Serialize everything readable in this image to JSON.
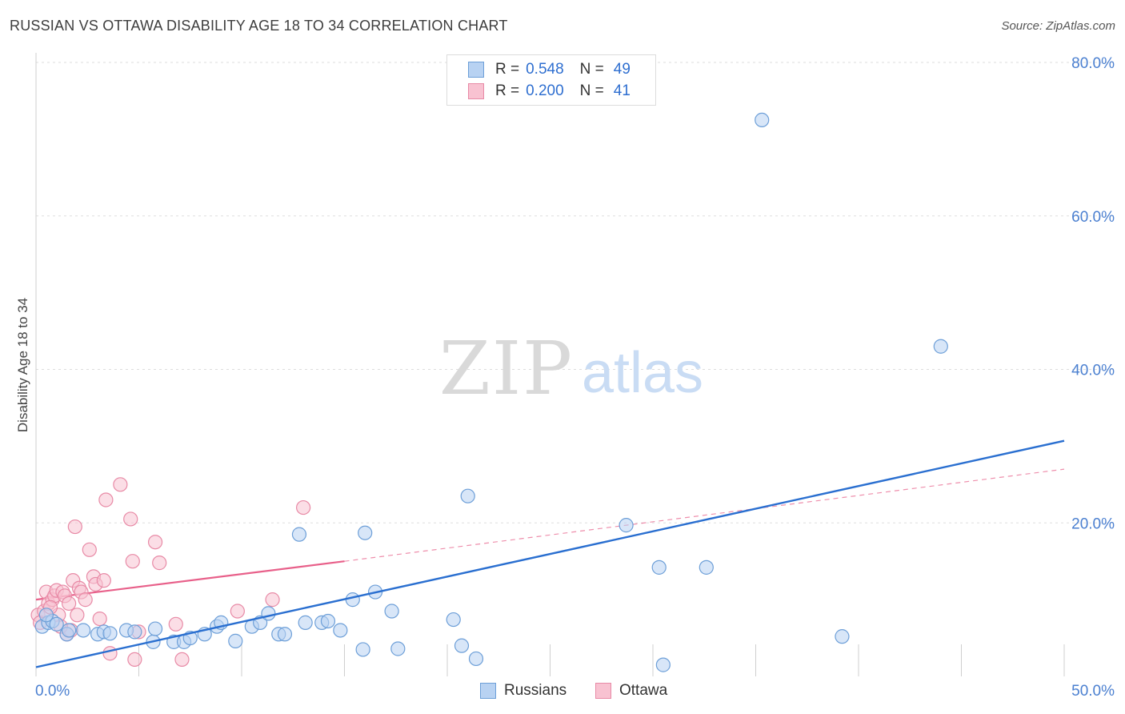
{
  "title": "RUSSIAN VS OTTAWA DISABILITY AGE 18 TO 34 CORRELATION CHART",
  "source": "Source: ZipAtlas.com",
  "watermark": {
    "zip": "ZIP",
    "atlas": "atlas"
  },
  "legend": {
    "rows": [
      {
        "r_label": "R =",
        "r_value": "0.548",
        "n_label": "N =",
        "n_value": "49"
      },
      {
        "r_label": "R =",
        "r_value": "0.200",
        "n_label": "N =",
        "n_value": "41"
      }
    ]
  },
  "bottom_legend": {
    "russians": "Russians",
    "ottawa": "Ottawa"
  },
  "colors": {
    "russians_fill": "#b8d2f2",
    "russians_stroke": "#6d9fd8",
    "russians_line": "#2a6fd0",
    "ottawa_fill": "#f8c2d1",
    "ottawa_stroke": "#e88aa6",
    "ottawa_line": "#e8608a",
    "grid": "#dddddd",
    "axis_text": "#4a7fd0"
  },
  "chart_data": {
    "type": "scatter",
    "title": "RUSSIAN VS OTTAWA DISABILITY AGE 18 TO 34 CORRELATION CHART",
    "xlabel": "",
    "ylabel": "Disability Age 18 to 34",
    "xlim": [
      0,
      50
    ],
    "ylim": [
      0,
      80
    ],
    "x_tick_labels": [
      "0.0%",
      "50.0%"
    ],
    "y_ticks": [
      20,
      40,
      60,
      80
    ],
    "y_tick_labels": [
      "20.0%",
      "40.0%",
      "60.0%",
      "80.0%"
    ],
    "series": [
      {
        "name": "Russians",
        "r": 0.548,
        "n": 49,
        "trend": {
          "x": [
            0,
            50
          ],
          "y": [
            1.2,
            30.7
          ],
          "style": "solid"
        },
        "points": [
          [
            0.3,
            6.5
          ],
          [
            0.6,
            7.0
          ],
          [
            0.8,
            7.2
          ],
          [
            1.0,
            6.8
          ],
          [
            1.5,
            5.5
          ],
          [
            1.6,
            6.0
          ],
          [
            2.3,
            6.0
          ],
          [
            3.0,
            5.5
          ],
          [
            3.3,
            5.8
          ],
          [
            3.6,
            5.6
          ],
          [
            4.4,
            6.0
          ],
          [
            4.8,
            5.8
          ],
          [
            5.7,
            4.5
          ],
          [
            5.8,
            6.2
          ],
          [
            6.7,
            4.5
          ],
          [
            7.2,
            4.5
          ],
          [
            7.5,
            5.0
          ],
          [
            8.2,
            5.5
          ],
          [
            8.8,
            6.5
          ],
          [
            9.0,
            7.0
          ],
          [
            9.7,
            4.6
          ],
          [
            10.5,
            6.5
          ],
          [
            10.9,
            7.0
          ],
          [
            11.3,
            8.2
          ],
          [
            11.8,
            5.5
          ],
          [
            12.1,
            5.5
          ],
          [
            12.8,
            18.5
          ],
          [
            13.1,
            7.0
          ],
          [
            13.9,
            7.0
          ],
          [
            14.2,
            7.2
          ],
          [
            14.8,
            6.0
          ],
          [
            15.4,
            10.0
          ],
          [
            15.9,
            3.5
          ],
          [
            16.0,
            18.7
          ],
          [
            16.5,
            11.0
          ],
          [
            17.3,
            8.5
          ],
          [
            17.6,
            3.6
          ],
          [
            20.3,
            7.4
          ],
          [
            20.7,
            4.0
          ],
          [
            21.0,
            23.5
          ],
          [
            21.4,
            2.3
          ],
          [
            28.7,
            19.7
          ],
          [
            30.3,
            14.2
          ],
          [
            30.5,
            1.5
          ],
          [
            32.6,
            14.2
          ],
          [
            35.3,
            72.5
          ],
          [
            39.2,
            5.2
          ],
          [
            44.0,
            43.0
          ],
          [
            0.5,
            8.0
          ]
        ]
      },
      {
        "name": "Ottawa",
        "r": 0.2,
        "n": 41,
        "trend_solid": {
          "x": [
            0,
            15
          ],
          "y": [
            10.0,
            15.0
          ]
        },
        "trend_dashed": {
          "x": [
            15,
            50
          ],
          "y": [
            15.0,
            27.0
          ]
        },
        "points": [
          [
            0.1,
            8.0
          ],
          [
            0.2,
            7.0
          ],
          [
            0.4,
            8.5
          ],
          [
            0.5,
            11.0
          ],
          [
            0.6,
            9.5
          ],
          [
            0.8,
            10.0
          ],
          [
            0.9,
            10.5
          ],
          [
            1.0,
            11.2
          ],
          [
            1.1,
            8.0
          ],
          [
            1.3,
            11.0
          ],
          [
            1.4,
            10.5
          ],
          [
            1.5,
            5.5
          ],
          [
            1.6,
            9.5
          ],
          [
            1.7,
            6.0
          ],
          [
            1.8,
            12.5
          ],
          [
            1.9,
            19.5
          ],
          [
            2.0,
            8.0
          ],
          [
            2.1,
            11.5
          ],
          [
            2.2,
            11.0
          ],
          [
            2.4,
            10.0
          ],
          [
            2.6,
            16.5
          ],
          [
            2.8,
            13.0
          ],
          [
            2.9,
            12.0
          ],
          [
            3.1,
            7.5
          ],
          [
            3.3,
            12.5
          ],
          [
            3.4,
            23.0
          ],
          [
            3.6,
            3.0
          ],
          [
            4.1,
            25.0
          ],
          [
            4.6,
            20.5
          ],
          [
            4.7,
            15.0
          ],
          [
            4.8,
            2.2
          ],
          [
            5.0,
            5.8
          ],
          [
            5.8,
            17.5
          ],
          [
            6.0,
            14.8
          ],
          [
            6.8,
            6.8
          ],
          [
            7.1,
            2.2
          ],
          [
            9.8,
            8.5
          ],
          [
            11.5,
            10.0
          ],
          [
            13.0,
            22.0
          ],
          [
            0.7,
            9.0
          ],
          [
            1.2,
            6.5
          ]
        ]
      }
    ]
  }
}
